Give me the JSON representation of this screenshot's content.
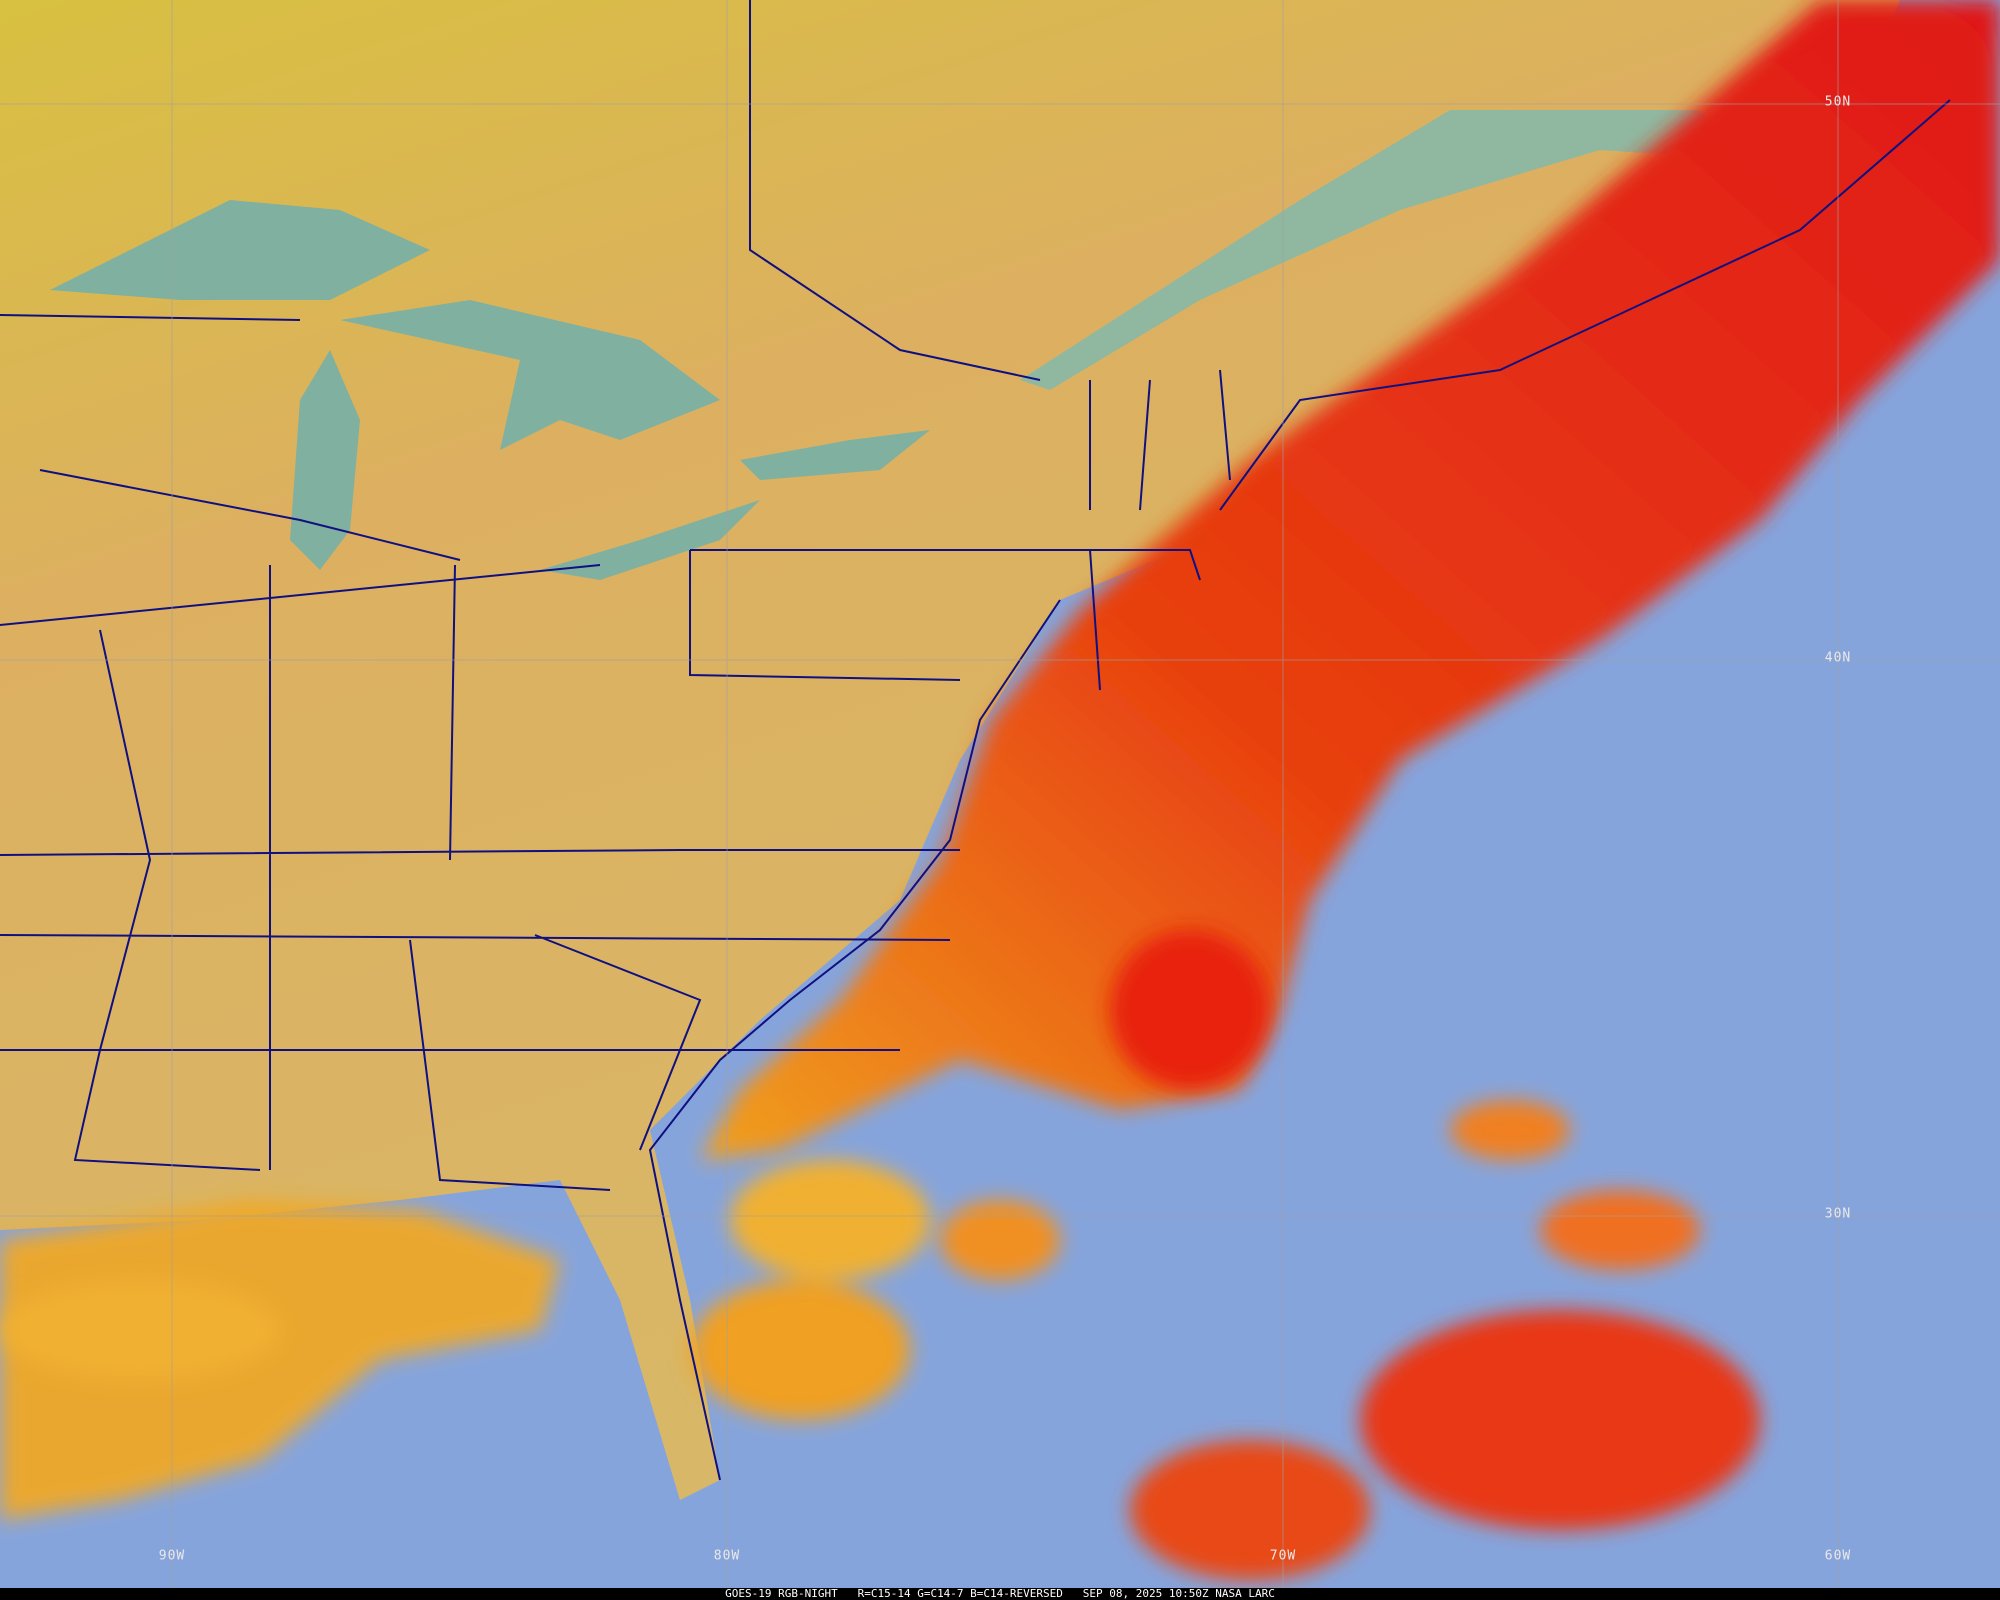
{
  "caption": {
    "satellite": "GOES-19 RGB-NIGHT",
    "channels": "R=C15-14 G=C14-7 B=C14-REVERSED",
    "datetime": "SEP 08, 2025 10:50Z",
    "source": "NASA LARC"
  },
  "longitude_labels": [
    "90W",
    "80W",
    "70W",
    "60W"
  ],
  "latitude_labels": [
    "50N",
    "40N",
    "30N"
  ],
  "colors": {
    "land": "#dcb060",
    "ocean_clear": "#86a4dc",
    "high_cloud": "#e82010",
    "low_cloud": "#f0a020",
    "boundaries": "#101080",
    "gridlines": "#a0a0a0"
  }
}
